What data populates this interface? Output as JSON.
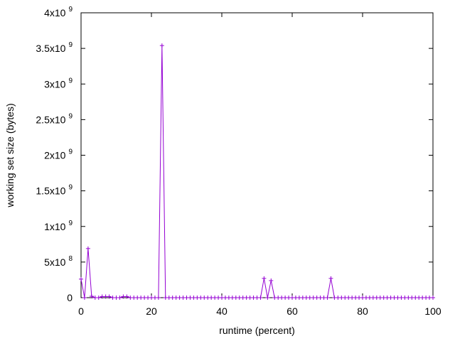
{
  "chart_data": {
    "type": "line",
    "title": "",
    "xlabel": "runtime (percent)",
    "ylabel": "working set size (bytes)",
    "xlim": [
      0,
      100
    ],
    "ylim": [
      0,
      4000000000
    ],
    "x_ticks": [
      {
        "value": 0,
        "label": "0"
      },
      {
        "value": 20,
        "label": "20"
      },
      {
        "value": 40,
        "label": "40"
      },
      {
        "value": 60,
        "label": "60"
      },
      {
        "value": 80,
        "label": "80"
      },
      {
        "value": 100,
        "label": "100"
      }
    ],
    "y_ticks": [
      {
        "value": 0,
        "mant": "0",
        "exp": ""
      },
      {
        "value": 500000000,
        "mant": "5x10",
        "exp": "8"
      },
      {
        "value": 1000000000,
        "mant": "1x10",
        "exp": "9"
      },
      {
        "value": 1500000000,
        "mant": "1.5x10",
        "exp": "9"
      },
      {
        "value": 2000000000,
        "mant": "2x10",
        "exp": "9"
      },
      {
        "value": 2500000000,
        "mant": "2.5x10",
        "exp": "9"
      },
      {
        "value": 3000000000,
        "mant": "3x10",
        "exp": "9"
      },
      {
        "value": 3500000000,
        "mant": "3.5x10",
        "exp": "9"
      },
      {
        "value": 4000000000,
        "mant": "4x10",
        "exp": "9"
      }
    ],
    "grid": false,
    "legend": "none",
    "marker": "plus",
    "color": "#9400d3",
    "series": [
      {
        "x": [
          0,
          1,
          2,
          3,
          4,
          5,
          6,
          7,
          8,
          9,
          10,
          11,
          12,
          13,
          14,
          15,
          16,
          17,
          18,
          19,
          20,
          21,
          22,
          23,
          24,
          25,
          26,
          27,
          28,
          29,
          30,
          31,
          32,
          33,
          34,
          35,
          36,
          37,
          38,
          39,
          40,
          41,
          42,
          43,
          44,
          45,
          46,
          47,
          48,
          49,
          50,
          51,
          52,
          53,
          54,
          55,
          56,
          57,
          58,
          59,
          60,
          61,
          62,
          63,
          64,
          65,
          66,
          67,
          68,
          69,
          70,
          71,
          72,
          73,
          74,
          75,
          76,
          77,
          78,
          79,
          80,
          81,
          82,
          83,
          84,
          85,
          86,
          87,
          88,
          89,
          90,
          91,
          92,
          93,
          94,
          95,
          96,
          97,
          98,
          99,
          100
        ],
        "values": [
          260000000,
          0,
          690000000,
          20000000,
          0,
          0,
          15000000,
          15000000,
          15000000,
          0,
          0,
          0,
          15000000,
          15000000,
          0,
          0,
          0,
          0,
          0,
          0,
          0,
          0,
          0,
          3540000000,
          0,
          0,
          0,
          0,
          0,
          0,
          0,
          0,
          0,
          0,
          0,
          0,
          0,
          0,
          0,
          0,
          0,
          0,
          0,
          0,
          0,
          0,
          0,
          0,
          0,
          0,
          0,
          0,
          270000000,
          0,
          240000000,
          0,
          0,
          0,
          0,
          0,
          0,
          0,
          0,
          0,
          0,
          0,
          0,
          0,
          0,
          0,
          0,
          270000000,
          0,
          0,
          0,
          0,
          0,
          0,
          0,
          0,
          0,
          0,
          0,
          0,
          0,
          0,
          0,
          0,
          0,
          0,
          0,
          0,
          0,
          0,
          0,
          0,
          0,
          0,
          0,
          0,
          0
        ]
      }
    ]
  }
}
